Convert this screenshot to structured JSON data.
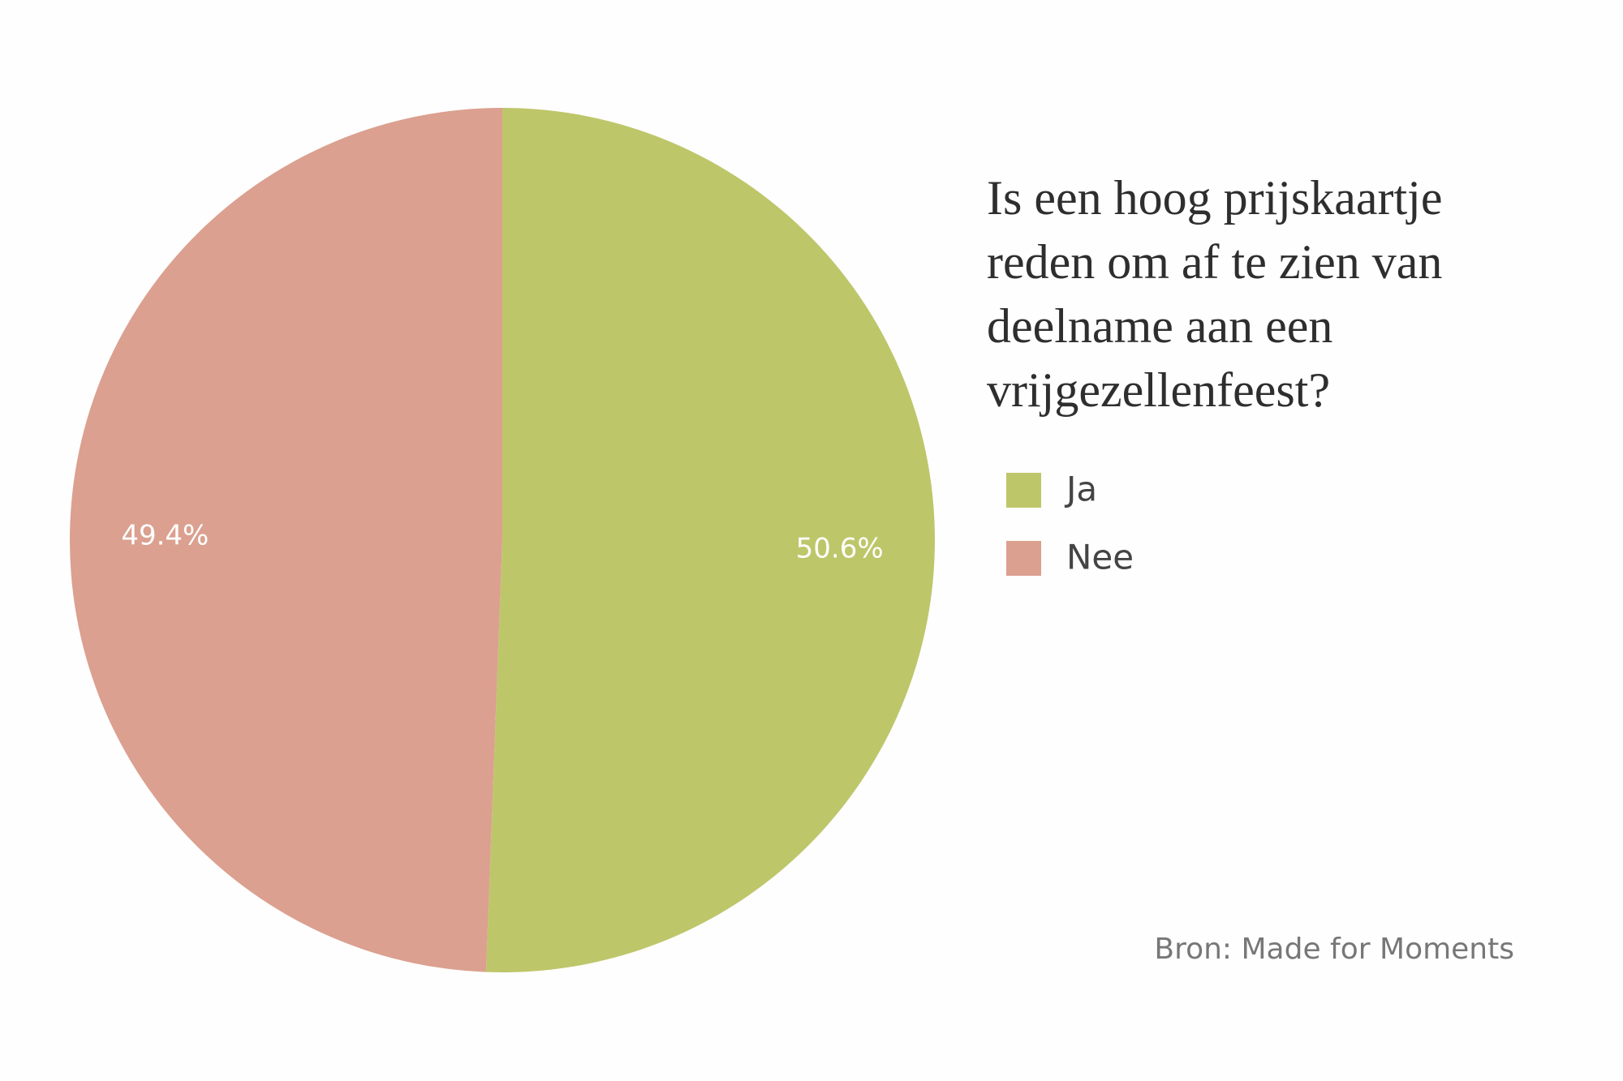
{
  "chart_data": {
    "type": "pie",
    "title": "Is een hoog prijskaartje reden om af te zien van deelname aan een vrijgezellenfeest?",
    "categories": [
      "Ja",
      "Nee"
    ],
    "values": [
      50.6,
      49.4
    ],
    "value_labels": [
      "50.6%",
      "49.4%"
    ],
    "colors": [
      "#bec66a",
      "#dba08f"
    ],
    "source": "Bron: Made for Moments"
  }
}
